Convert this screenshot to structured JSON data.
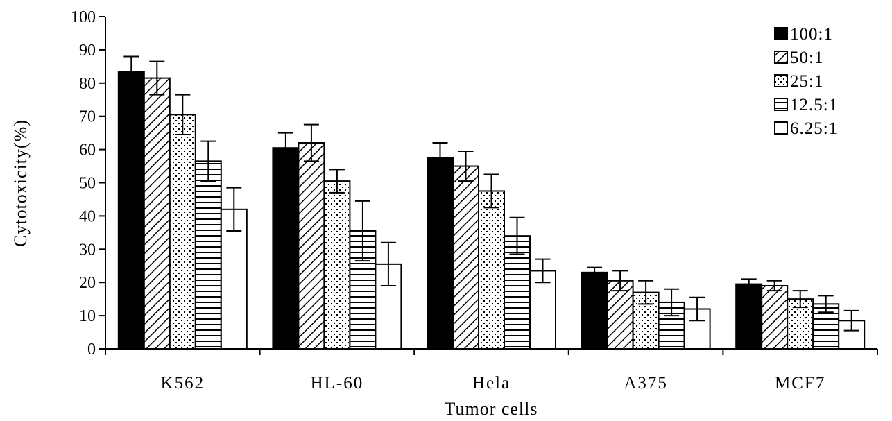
{
  "chart_data": {
    "type": "bar",
    "xlabel": "Tumor cells",
    "ylabel": "Cytotoxicity(%)",
    "ylim": [
      0,
      100
    ],
    "yticks": [
      0,
      10,
      20,
      30,
      40,
      50,
      60,
      70,
      80,
      90,
      100
    ],
    "grid": false,
    "legend_position": "top-right",
    "categories": [
      "K562",
      "HL-60",
      "Hela",
      "A375",
      "MCF7"
    ],
    "series": [
      {
        "name": "100:1",
        "pattern": "solid",
        "values": [
          83.5,
          60.5,
          57.5,
          23,
          19.5
        ],
        "errors": [
          4.5,
          4.5,
          4.5,
          1.5,
          1.5
        ]
      },
      {
        "name": "50:1",
        "pattern": "diagonal",
        "values": [
          81.5,
          62,
          55,
          20.5,
          19
        ],
        "errors": [
          5,
          5.5,
          4.5,
          3,
          1.5
        ]
      },
      {
        "name": "25:1",
        "pattern": "dots",
        "values": [
          70.5,
          50.5,
          47.5,
          17,
          15
        ],
        "errors": [
          6,
          3.5,
          5,
          3.5,
          2.5
        ]
      },
      {
        "name": "12.5:1",
        "pattern": "horizontal",
        "values": [
          56.5,
          35.5,
          34,
          14,
          13.5
        ],
        "errors": [
          6,
          9,
          5.5,
          4,
          2.5
        ]
      },
      {
        "name": "6.25:1",
        "pattern": "open",
        "values": [
          42,
          25.5,
          23.5,
          12,
          8.5
        ],
        "errors": [
          6.5,
          6.5,
          3.5,
          3.5,
          3
        ]
      }
    ],
    "colors": {
      "ink": "#000000",
      "background": "#ffffff"
    }
  }
}
